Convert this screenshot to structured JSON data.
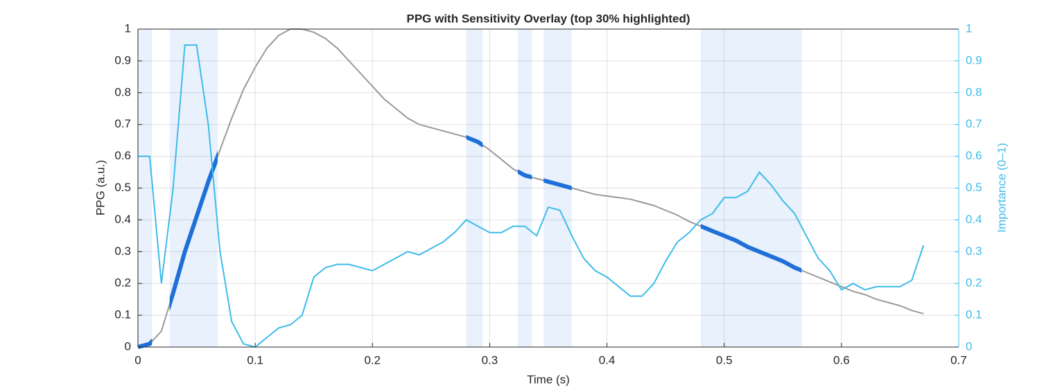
{
  "chart_data": {
    "type": "line",
    "title": "PPG with Sensitivity Overlay (top 30% highlighted)",
    "xlabel": "Time (s)",
    "ylabel": "PPG (a.u.)",
    "y2label": "Importance (0–1)",
    "x": [
      0,
      0.01,
      0.02,
      0.03,
      0.04,
      0.05,
      0.06,
      0.07,
      0.08,
      0.09,
      0.1,
      0.11,
      0.12,
      0.13,
      0.14,
      0.15,
      0.16,
      0.17,
      0.18,
      0.19,
      0.2,
      0.21,
      0.22,
      0.23,
      0.24,
      0.25,
      0.26,
      0.27,
      0.28,
      0.29,
      0.3,
      0.31,
      0.32,
      0.33,
      0.34,
      0.35,
      0.36,
      0.37,
      0.38,
      0.39,
      0.4,
      0.41,
      0.42,
      0.43,
      0.44,
      0.45,
      0.46,
      0.47,
      0.48,
      0.49,
      0.5,
      0.51,
      0.52,
      0.53,
      0.54,
      0.55,
      0.56,
      0.57,
      0.58,
      0.59,
      0.6,
      0.61,
      0.62,
      0.63,
      0.64,
      0.65,
      0.66,
      0.67
    ],
    "series": [
      {
        "color": "#999999",
        "values": [
          0,
          0.01,
          0.05,
          0.17,
          0.3,
          0.41,
          0.52,
          0.62,
          0.72,
          0.81,
          0.88,
          0.94,
          0.98,
          1.0,
          1.0,
          0.99,
          0.97,
          0.94,
          0.9,
          0.86,
          0.82,
          0.78,
          0.75,
          0.72,
          0.7,
          0.69,
          0.68,
          0.67,
          0.66,
          0.645,
          0.62,
          0.59,
          0.56,
          0.54,
          0.53,
          0.52,
          0.51,
          0.5,
          0.49,
          0.48,
          0.475,
          0.47,
          0.465,
          0.455,
          0.445,
          0.43,
          0.415,
          0.395,
          0.38,
          0.365,
          0.35,
          0.335,
          0.315,
          0.3,
          0.285,
          0.27,
          0.25,
          0.235,
          0.22,
          0.205,
          0.19,
          0.175,
          0.165,
          0.15,
          0.14,
          0.13,
          0.115,
          0.105
        ]
      },
      {
        "color": "#3dbbea",
        "axis": "y2",
        "values": [
          0.6,
          0.6,
          0.2,
          0.5,
          0.95,
          0.95,
          0.7,
          0.3,
          0.08,
          0.01,
          0.0,
          0.03,
          0.06,
          0.07,
          0.1,
          0.22,
          0.25,
          0.26,
          0.26,
          0.25,
          0.24,
          0.26,
          0.28,
          0.3,
          0.29,
          0.31,
          0.33,
          0.36,
          0.4,
          0.38,
          0.36,
          0.36,
          0.38,
          0.38,
          0.35,
          0.44,
          0.43,
          0.35,
          0.28,
          0.24,
          0.22,
          0.19,
          0.16,
          0.16,
          0.2,
          0.27,
          0.33,
          0.36,
          0.4,
          0.42,
          0.47,
          0.47,
          0.49,
          0.55,
          0.51,
          0.46,
          0.42,
          0.35,
          0.28,
          0.24,
          0.18,
          0.2,
          0.18,
          0.19,
          0.19,
          0.19,
          0.21,
          0.32
        ]
      }
    ],
    "highlight_regions": [
      [
        0,
        0.012
      ],
      [
        0.027,
        0.068
      ],
      [
        0.28,
        0.294
      ],
      [
        0.324,
        0.336
      ],
      [
        0.346,
        0.37
      ],
      [
        0.48,
        0.566
      ]
    ],
    "region_color": "#e8f1fc",
    "highlight_color": "#1f6fd8",
    "xlim": [
      0,
      0.7
    ],
    "ylim": [
      0,
      1
    ],
    "y2lim": [
      0,
      1
    ],
    "xticks": [
      0,
      0.1,
      0.2,
      0.3,
      0.4,
      0.5,
      0.6,
      0.7
    ],
    "yticks": [
      0,
      0.1,
      0.2,
      0.3,
      0.4,
      0.5,
      0.6,
      0.7,
      0.8,
      0.9,
      1
    ],
    "y2ticks": [
      0,
      0.1,
      0.2,
      0.3,
      0.4,
      0.5,
      0.6,
      0.7,
      0.8,
      0.9,
      1
    ],
    "grid": true
  }
}
